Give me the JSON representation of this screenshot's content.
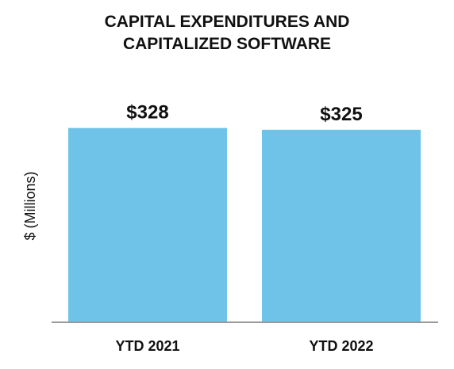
{
  "chart_data": {
    "type": "bar",
    "title_lines": [
      "CAPITAL EXPENDITURES AND",
      "CAPITALIZED SOFTWARE"
    ],
    "ylabel": "$ (Millions)",
    "categories": [
      "YTD 2021",
      "YTD 2022"
    ],
    "values": [
      328,
      325
    ],
    "data_labels": [
      "$328",
      "$325"
    ],
    "ylim": [
      0,
      400
    ],
    "grid": false,
    "legend": "none",
    "bar_color": "#70c3e8",
    "axis_color": "#999999"
  }
}
